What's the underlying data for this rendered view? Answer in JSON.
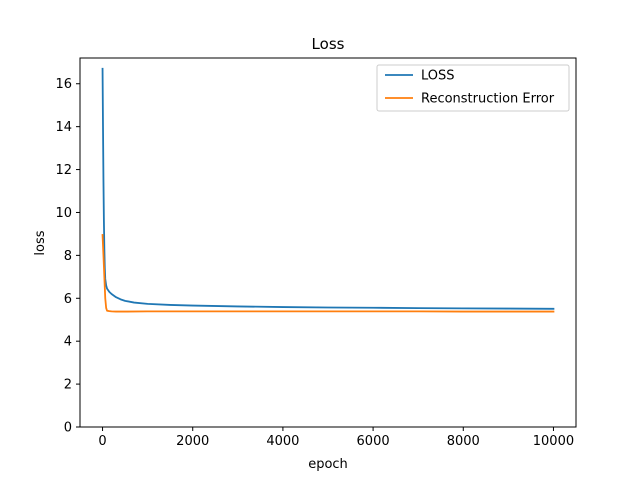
{
  "chart_data": {
    "type": "line",
    "title": "Loss",
    "xlabel": "epoch",
    "ylabel": "loss",
    "xlim": [
      -500,
      10500
    ],
    "ylim": [
      0,
      17.2
    ],
    "xticks": [
      0,
      2000,
      4000,
      6000,
      8000,
      10000
    ],
    "yticks": [
      0,
      2,
      4,
      6,
      8,
      10,
      12,
      14,
      16
    ],
    "grid": false,
    "legend_position": "top-right",
    "series": [
      {
        "name": "LOSS",
        "color": "#1f77b4",
        "x": [
          0,
          10,
          20,
          30,
          40,
          50,
          60,
          80,
          100,
          150,
          200,
          300,
          400,
          500,
          700,
          1000,
          1500,
          2000,
          3000,
          4000,
          5000,
          6000,
          7000,
          8000,
          9000,
          10000
        ],
        "y": [
          16.7,
          14.0,
          11.5,
          9.6,
          8.3,
          7.4,
          6.9,
          6.6,
          6.45,
          6.3,
          6.2,
          6.05,
          5.95,
          5.88,
          5.8,
          5.74,
          5.69,
          5.66,
          5.62,
          5.59,
          5.57,
          5.56,
          5.54,
          5.53,
          5.52,
          5.51
        ]
      },
      {
        "name": "Reconstruction Error",
        "color": "#ff7f0e",
        "x": [
          0,
          20,
          40,
          60,
          80,
          100,
          150,
          200,
          300,
          500,
          1000,
          2000,
          3000,
          4000,
          5000,
          6000,
          7000,
          8000,
          9000,
          10000
        ],
        "y": [
          8.95,
          8.0,
          7.0,
          6.0,
          5.55,
          5.42,
          5.4,
          5.39,
          5.38,
          5.38,
          5.39,
          5.39,
          5.39,
          5.39,
          5.39,
          5.39,
          5.39,
          5.38,
          5.38,
          5.38
        ]
      }
    ]
  }
}
